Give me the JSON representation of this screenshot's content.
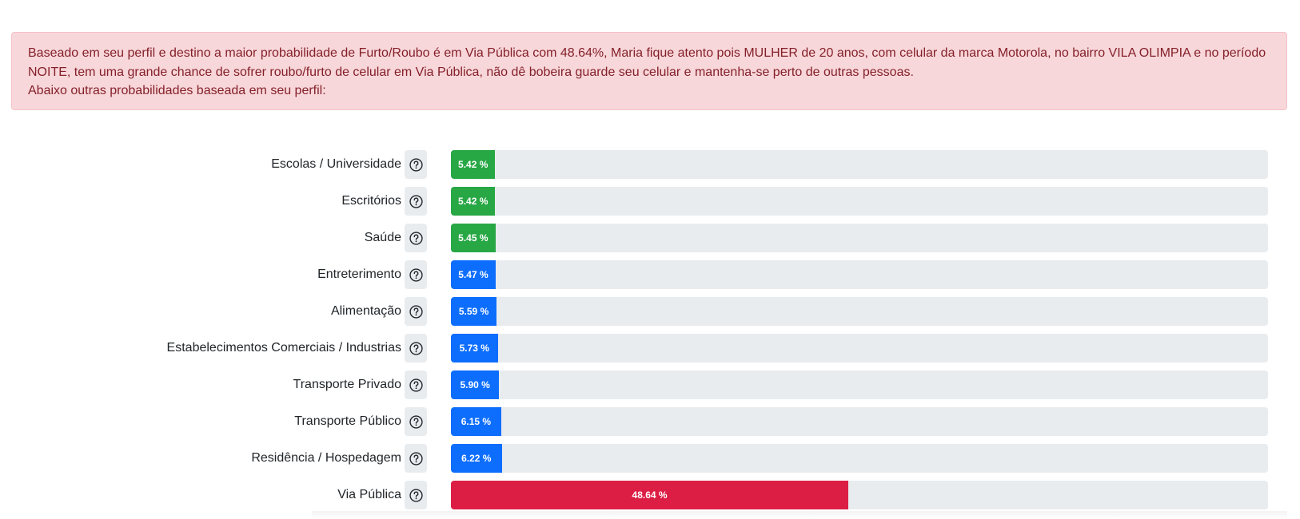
{
  "alert": {
    "line1": "Baseado em seu perfil e destino a maior probabilidade de Furto/Roubo é em Via Pública com 48.64%, Maria fique atento pois MULHER de 20 anos, com celular da marca Motorola, no bairro VILA OLIMPIA e no período NOITE, tem uma grande chance de sofrer roubo/furto de celular em Via Pública, não dê bobeira guarde seu celular e mantenha-se perto de outras pessoas.",
    "line2": "Abaixo outras probabilidades baseada em seu perfil:"
  },
  "colors": {
    "success": "#28a745",
    "primary": "#0d6efd",
    "danger": "#dc1e44",
    "alert_bg": "#f8d7da",
    "alert_text": "#842029"
  },
  "help_icon": "question-circle-icon",
  "probabilities": [
    {
      "label": "Escolas / Universidade",
      "value": 5.42,
      "text": "5.42 %",
      "variant": "success"
    },
    {
      "label": "Escritórios",
      "value": 5.42,
      "text": "5.42 %",
      "variant": "success"
    },
    {
      "label": "Saúde",
      "value": 5.45,
      "text": "5.45 %",
      "variant": "success"
    },
    {
      "label": "Entreterimento",
      "value": 5.47,
      "text": "5.47 %",
      "variant": "primary"
    },
    {
      "label": "Alimentação",
      "value": 5.59,
      "text": "5.59 %",
      "variant": "primary"
    },
    {
      "label": "Estabelecimentos Comerciais / Industrias",
      "value": 5.73,
      "text": "5.73 %",
      "variant": "primary"
    },
    {
      "label": "Transporte Privado",
      "value": 5.9,
      "text": "5.90 %",
      "variant": "primary"
    },
    {
      "label": "Transporte Público",
      "value": 6.15,
      "text": "6.15 %",
      "variant": "primary"
    },
    {
      "label": "Residência / Hospedagem",
      "value": 6.22,
      "text": "6.22 %",
      "variant": "primary"
    },
    {
      "label": "Via Pública",
      "value": 48.64,
      "text": "48.64 %",
      "variant": "danger"
    }
  ]
}
